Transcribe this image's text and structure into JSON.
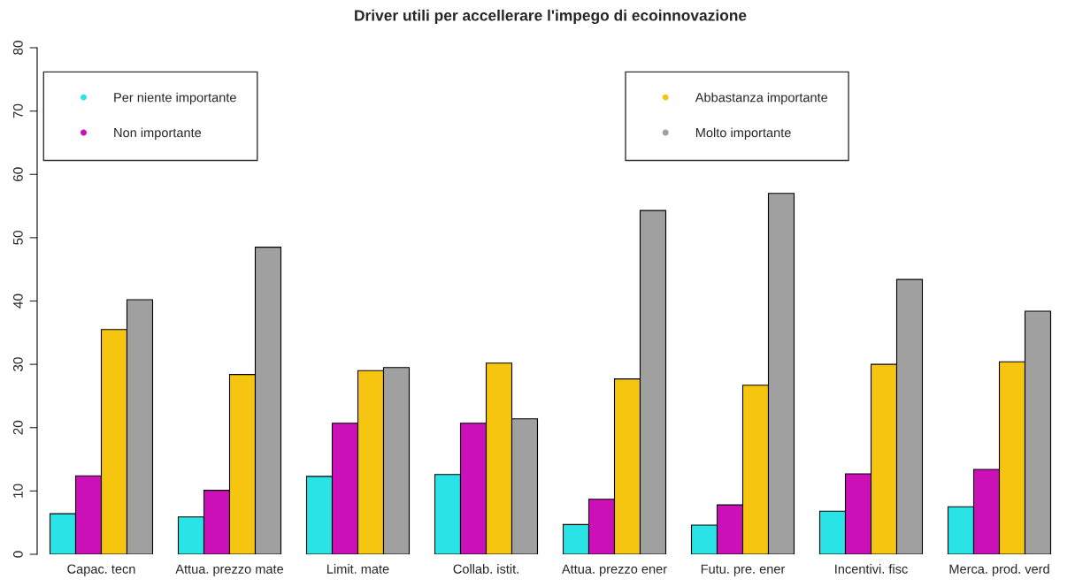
{
  "chart_data": {
    "type": "bar",
    "title": "Driver utili per accellerare l'impego di ecoinnovazione",
    "categories": [
      "Capac. tecn",
      "Attua. prezzo mate",
      "Limit. mate",
      "Collab. istit.",
      "Attua. prezzo ener",
      "Futu. pre. ener",
      "Incentivi. fisc",
      "Merca. prod. verd"
    ],
    "series": [
      {
        "name": "Per niente importante",
        "color": "#29e3e6",
        "values": [
          6.4,
          5.9,
          12.3,
          12.6,
          4.7,
          4.6,
          6.8,
          7.5
        ]
      },
      {
        "name": "Non importante",
        "color": "#cc10b8",
        "values": [
          12.4,
          10.1,
          20.7,
          20.7,
          8.7,
          7.8,
          12.7,
          13.4
        ]
      },
      {
        "name": "Abbastanza importante",
        "color": "#f5c510",
        "values": [
          35.5,
          28.4,
          29.0,
          30.2,
          27.7,
          26.7,
          30.0,
          30.4
        ]
      },
      {
        "name": "Molto importante",
        "color": "#a0a0a0",
        "values": [
          40.2,
          48.5,
          29.5,
          21.4,
          54.3,
          57.0,
          43.4,
          38.4
        ]
      }
    ],
    "ylim": [
      0,
      80
    ],
    "yticks": [
      0,
      10,
      20,
      30,
      40,
      50,
      60,
      70,
      80
    ],
    "legend": "top",
    "grid": false
  }
}
